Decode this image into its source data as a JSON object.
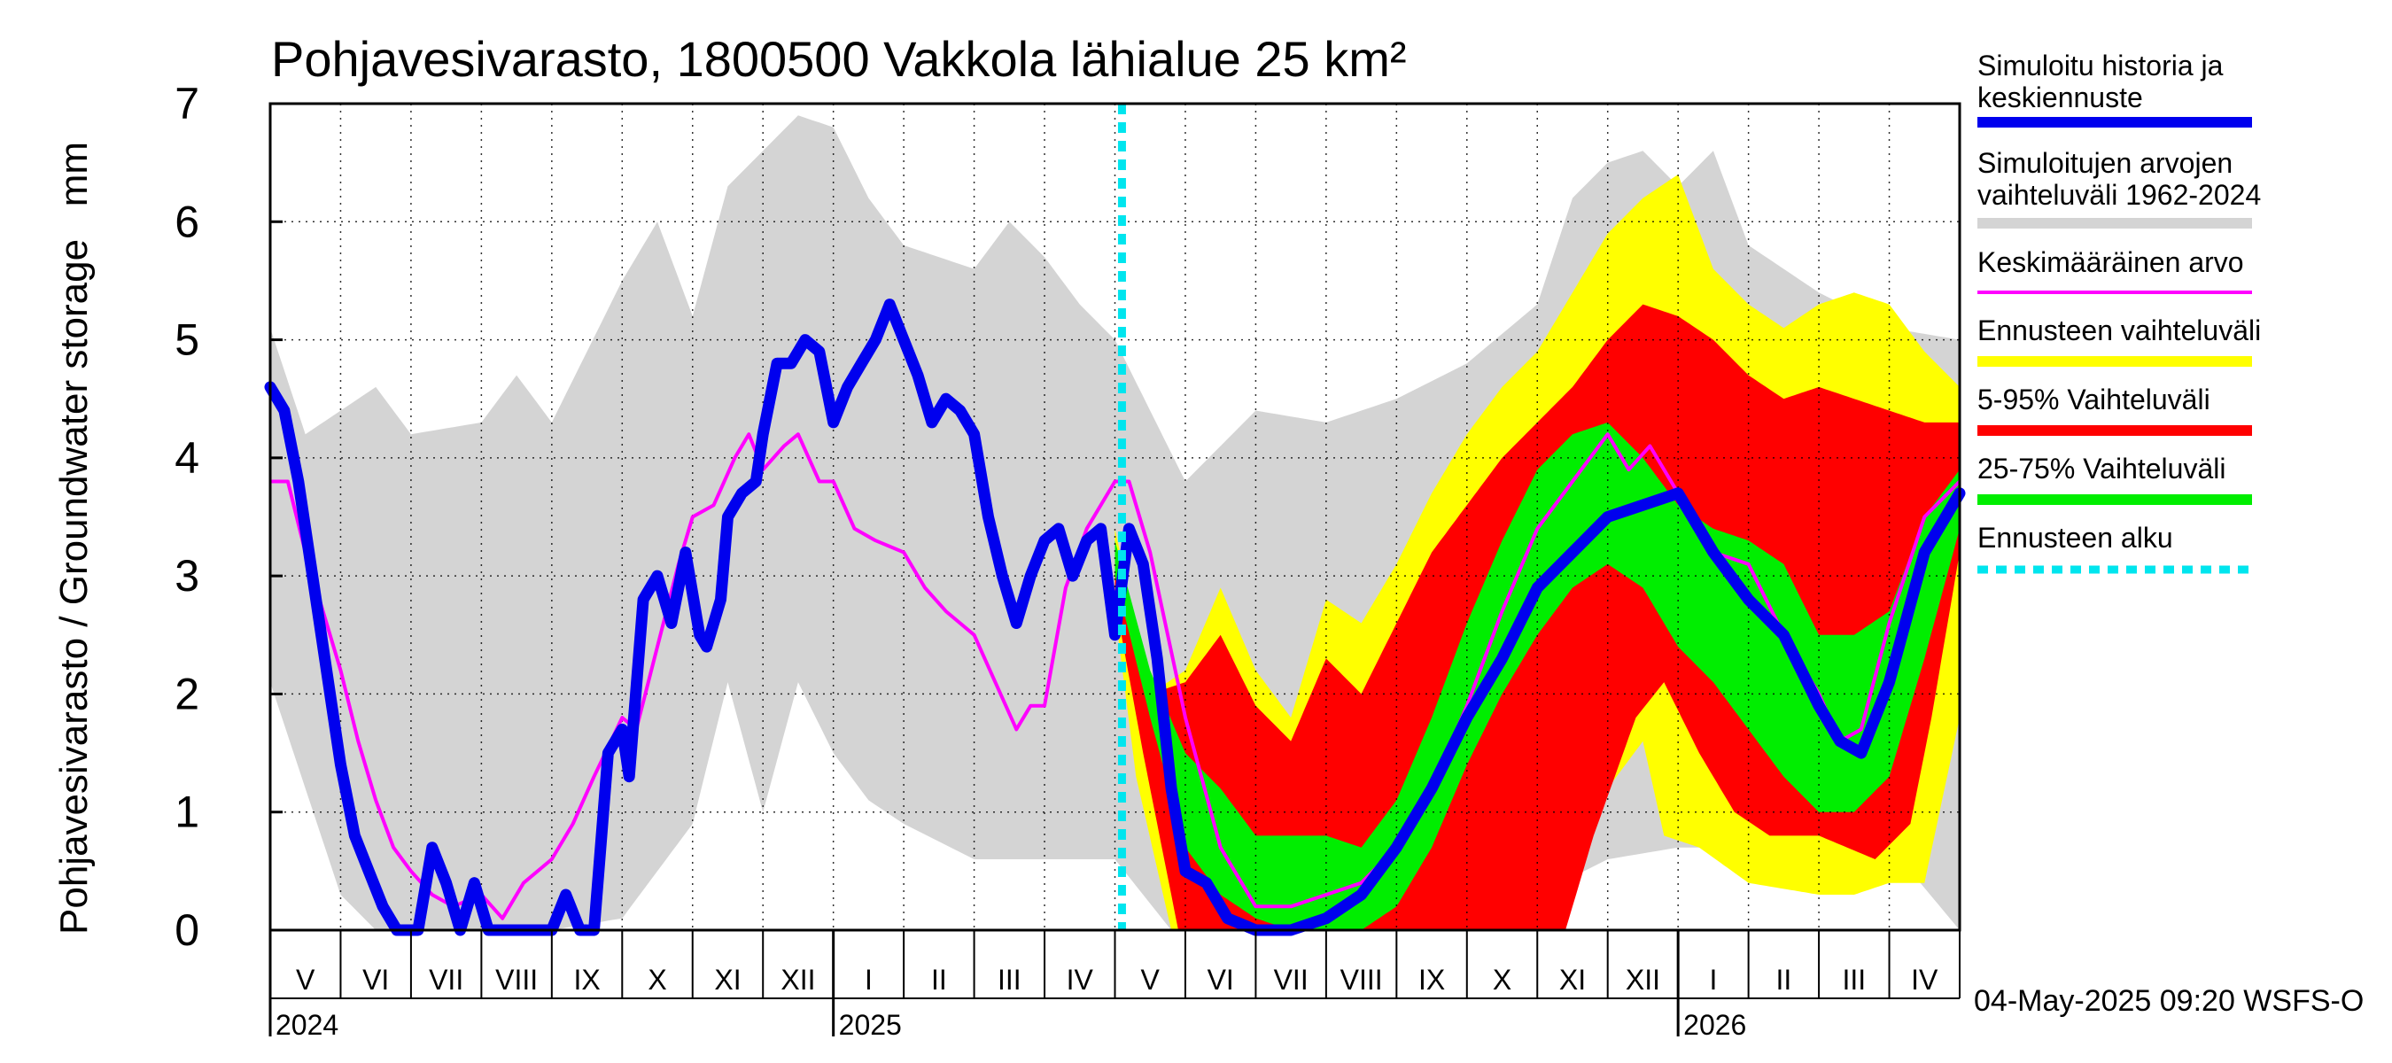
{
  "chart_data": {
    "type": "area",
    "title": "Pohjavesivarasto, 1800500 Vakkola lähialue 25 km²",
    "ylabel": "Pohjavesivarasto / Groundwater storage   mm",
    "ylim": [
      0,
      7
    ],
    "yticks": [
      "0",
      "1",
      "2",
      "3",
      "4",
      "5",
      "6",
      "7"
    ],
    "grid": true,
    "legend_position": "right",
    "months": [
      "V",
      "VI",
      "VII",
      "VIII",
      "IX",
      "X",
      "XI",
      "XII",
      "I",
      "II",
      "III",
      "IV",
      "V",
      "VI",
      "VII",
      "VIII",
      "IX",
      "X",
      "XI",
      "XII",
      "I",
      "II",
      "III",
      "IV"
    ],
    "years": [
      {
        "label": "2024",
        "month_index": 0
      },
      {
        "label": "2025",
        "month_index": 8
      },
      {
        "label": "2026",
        "month_index": 20
      }
    ],
    "forecast_start_month": 12.1,
    "footer": "04-May-2025 09:20 WSFS-O",
    "colors": {
      "history_range": "#d4d4d4",
      "forecast_range": "#ffff00",
      "p5_95": "#ff0000",
      "p25_75": "#00ee00",
      "mean": "#ff00ff",
      "simulated": "#0000ee",
      "forecast_start": "#00e5ee"
    },
    "legend": [
      {
        "label": "Simuloitu historia ja keskiennuste",
        "color": "#0000ee",
        "style": "thick"
      },
      {
        "label": "Simuloitujen arvojen vaihteluväli 1962-2024",
        "color": "#d4d4d4",
        "style": "thick"
      },
      {
        "label": "Keskimääräinen arvo",
        "color": "#ff00ff",
        "style": "thin"
      },
      {
        "label": "Ennusteen vaihteluväli",
        "color": "#ffff00",
        "style": "thick"
      },
      {
        "label": "5-95% Vaihteluväli",
        "color": "#ff0000",
        "style": "thick"
      },
      {
        "label": "25-75% Vaihteluväli",
        "color": "#00ee00",
        "style": "thick"
      },
      {
        "label": "Ennusteen alku",
        "color": "#00e5ee",
        "style": "dotted"
      }
    ],
    "series": {
      "history_max": [
        [
          0,
          5.1
        ],
        [
          0.5,
          4.2
        ],
        [
          1,
          4.4
        ],
        [
          1.5,
          4.6
        ],
        [
          2,
          4.2
        ],
        [
          3,
          4.3
        ],
        [
          3.5,
          4.7
        ],
        [
          4,
          4.3
        ],
        [
          5,
          5.5
        ],
        [
          5.5,
          6.0
        ],
        [
          6,
          5.2
        ],
        [
          6.5,
          6.3
        ],
        [
          7,
          6.6
        ],
        [
          7.5,
          6.9
        ],
        [
          8,
          6.8
        ],
        [
          8.5,
          6.2
        ],
        [
          9,
          5.8
        ],
        [
          10,
          5.6
        ],
        [
          10.5,
          6.0
        ],
        [
          11,
          5.7
        ],
        [
          11.5,
          5.3
        ],
        [
          12,
          5.0
        ],
        [
          13,
          3.8
        ],
        [
          14,
          4.4
        ],
        [
          15,
          4.3
        ],
        [
          16,
          4.5
        ],
        [
          17,
          4.8
        ],
        [
          18,
          5.3
        ],
        [
          18.5,
          6.2
        ],
        [
          19,
          6.5
        ],
        [
          19.5,
          6.6
        ],
        [
          20,
          6.3
        ],
        [
          20.5,
          6.6
        ],
        [
          21,
          5.8
        ],
        [
          22,
          5.4
        ],
        [
          23,
          5.1
        ],
        [
          24,
          5.0
        ]
      ],
      "history_min": [
        [
          0,
          2.1
        ],
        [
          0.5,
          1.2
        ],
        [
          1,
          0.3
        ],
        [
          1.5,
          0
        ],
        [
          4,
          0
        ],
        [
          5,
          0.1
        ],
        [
          6,
          0.9
        ],
        [
          6.5,
          2.1
        ],
        [
          7,
          1.0
        ],
        [
          7.5,
          2.1
        ],
        [
          8,
          1.5
        ],
        [
          8.5,
          1.1
        ],
        [
          9,
          0.9
        ],
        [
          10,
          0.6
        ],
        [
          11,
          0.6
        ],
        [
          12,
          0.6
        ],
        [
          12.8,
          0
        ],
        [
          17.5,
          0
        ],
        [
          18,
          0.3
        ],
        [
          19,
          0.6
        ],
        [
          20,
          0.7
        ],
        [
          21,
          0.7
        ],
        [
          22,
          0.6
        ],
        [
          23,
          0.4
        ],
        [
          23.3,
          0.5
        ],
        [
          24,
          0
        ]
      ],
      "forecast_max": [
        [
          12,
          3.4
        ],
        [
          12.5,
          2.0
        ],
        [
          13,
          2.2
        ],
        [
          13.5,
          2.9
        ],
        [
          14,
          2.2
        ],
        [
          14.5,
          1.8
        ],
        [
          15,
          2.8
        ],
        [
          15.5,
          2.6
        ],
        [
          16,
          3.1
        ],
        [
          16.5,
          3.7
        ],
        [
          17,
          4.2
        ],
        [
          17.5,
          4.6
        ],
        [
          18,
          4.9
        ],
        [
          18.5,
          5.4
        ],
        [
          19,
          5.9
        ],
        [
          19.5,
          6.2
        ],
        [
          20,
          6.4
        ],
        [
          20.5,
          5.6
        ],
        [
          21,
          5.3
        ],
        [
          21.5,
          5.1
        ],
        [
          22,
          5.3
        ],
        [
          22.5,
          5.4
        ],
        [
          23,
          5.3
        ],
        [
          23.5,
          4.9
        ],
        [
          24,
          4.6
        ]
      ],
      "forecast_min": [
        [
          12,
          2.7
        ],
        [
          12.3,
          1.3
        ],
        [
          12.8,
          0
        ],
        [
          18.2,
          0
        ],
        [
          18.6,
          0.5
        ],
        [
          19,
          1.2
        ],
        [
          19.5,
          1.6
        ],
        [
          19.8,
          0.8
        ],
        [
          20.3,
          0.7
        ],
        [
          21,
          0.4
        ],
        [
          22,
          0.3
        ],
        [
          22.5,
          0.3
        ],
        [
          23,
          0.4
        ],
        [
          23.5,
          0.4
        ],
        [
          24,
          1.8
        ]
      ],
      "p95": [
        [
          12,
          3.2
        ],
        [
          12.5,
          2.0
        ],
        [
          13,
          2.1
        ],
        [
          13.5,
          2.5
        ],
        [
          14,
          1.9
        ],
        [
          14.5,
          1.6
        ],
        [
          15,
          2.3
        ],
        [
          15.5,
          2.0
        ],
        [
          16,
          2.6
        ],
        [
          16.5,
          3.2
        ],
        [
          17,
          3.6
        ],
        [
          17.5,
          4.0
        ],
        [
          18,
          4.3
        ],
        [
          18.5,
          4.6
        ],
        [
          19,
          5.0
        ],
        [
          19.5,
          5.3
        ],
        [
          20,
          5.2
        ],
        [
          20.5,
          5.0
        ],
        [
          21,
          4.7
        ],
        [
          21.5,
          4.5
        ],
        [
          22,
          4.6
        ],
        [
          22.5,
          4.5
        ],
        [
          23,
          4.4
        ],
        [
          23.5,
          4.3
        ],
        [
          24,
          4.3
        ]
      ],
      "p5": [
        [
          12,
          2.8
        ],
        [
          12.4,
          1.5
        ],
        [
          12.9,
          0
        ],
        [
          18.4,
          0
        ],
        [
          18.8,
          0.8
        ],
        [
          19.4,
          1.8
        ],
        [
          19.8,
          2.1
        ],
        [
          20.3,
          1.5
        ],
        [
          20.8,
          1.0
        ],
        [
          21.3,
          0.8
        ],
        [
          22,
          0.8
        ],
        [
          22.8,
          0.6
        ],
        [
          23.3,
          0.9
        ],
        [
          23.6,
          1.8
        ],
        [
          24,
          3.2
        ]
      ],
      "p75": [
        [
          12,
          3.3
        ],
        [
          12.5,
          2.2
        ],
        [
          13,
          1.5
        ],
        [
          13.5,
          1.2
        ],
        [
          14,
          0.8
        ],
        [
          14.5,
          0.8
        ],
        [
          15,
          0.8
        ],
        [
          15.5,
          0.7
        ],
        [
          16,
          1.1
        ],
        [
          16.5,
          1.8
        ],
        [
          17,
          2.6
        ],
        [
          17.5,
          3.3
        ],
        [
          18,
          3.9
        ],
        [
          18.5,
          4.2
        ],
        [
          19,
          4.3
        ],
        [
          19.5,
          4.0
        ],
        [
          20,
          3.6
        ],
        [
          20.5,
          3.4
        ],
        [
          21,
          3.3
        ],
        [
          21.5,
          3.1
        ],
        [
          22,
          2.5
        ],
        [
          22.5,
          2.5
        ],
        [
          23,
          2.7
        ],
        [
          23.5,
          3.5
        ],
        [
          24,
          3.9
        ]
      ],
      "p25": [
        [
          12,
          3.0
        ],
        [
          12.5,
          1.8
        ],
        [
          13,
          0.7
        ],
        [
          13.5,
          0.3
        ],
        [
          14,
          0.1
        ],
        [
          14.5,
          0
        ],
        [
          15,
          0
        ],
        [
          15.5,
          0
        ],
        [
          16,
          0.2
        ],
        [
          16.5,
          0.7
        ],
        [
          17,
          1.4
        ],
        [
          17.5,
          2.0
        ],
        [
          18,
          2.5
        ],
        [
          18.5,
          2.9
        ],
        [
          19,
          3.1
        ],
        [
          19.5,
          2.9
        ],
        [
          20,
          2.4
        ],
        [
          20.5,
          2.1
        ],
        [
          21,
          1.7
        ],
        [
          21.5,
          1.3
        ],
        [
          22,
          1.0
        ],
        [
          22.5,
          1.0
        ],
        [
          23,
          1.3
        ],
        [
          23.5,
          2.3
        ],
        [
          24,
          3.4
        ]
      ],
      "mean": [
        [
          0,
          3.8
        ],
        [
          0.25,
          3.8
        ],
        [
          0.5,
          3.2
        ],
        [
          0.75,
          2.7
        ],
        [
          1,
          2.2
        ],
        [
          1.25,
          1.6
        ],
        [
          1.5,
          1.1
        ],
        [
          1.75,
          0.7
        ],
        [
          2,
          0.5
        ],
        [
          2.3,
          0.3
        ],
        [
          2.6,
          0.2
        ],
        [
          3,
          0.3
        ],
        [
          3.3,
          0.1
        ],
        [
          3.6,
          0.4
        ],
        [
          4,
          0.6
        ],
        [
          4.3,
          0.9
        ],
        [
          4.6,
          1.3
        ],
        [
          5,
          1.8
        ],
        [
          5.2,
          1.7
        ],
        [
          5.5,
          2.4
        ],
        [
          5.8,
          3.1
        ],
        [
          6,
          3.5
        ],
        [
          6.3,
          3.6
        ],
        [
          6.6,
          4.0
        ],
        [
          6.8,
          4.2
        ],
        [
          7,
          3.9
        ],
        [
          7.3,
          4.1
        ],
        [
          7.5,
          4.2
        ],
        [
          7.8,
          3.8
        ],
        [
          8,
          3.8
        ],
        [
          8.3,
          3.4
        ],
        [
          8.6,
          3.3
        ],
        [
          9,
          3.2
        ],
        [
          9.3,
          2.9
        ],
        [
          9.6,
          2.7
        ],
        [
          10,
          2.5
        ],
        [
          10.3,
          2.1
        ],
        [
          10.6,
          1.7
        ],
        [
          10.8,
          1.9
        ],
        [
          11,
          1.9
        ],
        [
          11.3,
          2.9
        ],
        [
          11.6,
          3.4
        ],
        [
          12,
          3.8
        ],
        [
          12.2,
          3.8
        ],
        [
          12.5,
          3.2
        ],
        [
          13,
          1.8
        ],
        [
          13.5,
          0.7
        ],
        [
          14,
          0.2
        ],
        [
          14.5,
          0.2
        ],
        [
          15,
          0.3
        ],
        [
          15.5,
          0.4
        ],
        [
          16,
          0.7
        ],
        [
          16.5,
          1.2
        ],
        [
          17,
          1.9
        ],
        [
          17.5,
          2.7
        ],
        [
          18,
          3.4
        ],
        [
          18.5,
          3.8
        ],
        [
          19,
          4.2
        ],
        [
          19.3,
          3.9
        ],
        [
          19.6,
          4.1
        ],
        [
          20,
          3.7
        ],
        [
          20.5,
          3.2
        ],
        [
          21,
          3.1
        ],
        [
          21.5,
          2.5
        ],
        [
          22,
          2.0
        ],
        [
          22.3,
          1.6
        ],
        [
          22.6,
          1.7
        ],
        [
          23,
          2.6
        ],
        [
          23.5,
          3.5
        ],
        [
          24,
          3.8
        ]
      ],
      "simulated": [
        [
          0,
          4.6
        ],
        [
          0.2,
          4.4
        ],
        [
          0.4,
          3.8
        ],
        [
          0.6,
          3.0
        ],
        [
          0.8,
          2.2
        ],
        [
          1,
          1.4
        ],
        [
          1.2,
          0.8
        ],
        [
          1.4,
          0.5
        ],
        [
          1.6,
          0.2
        ],
        [
          1.8,
          0
        ],
        [
          2.1,
          0
        ],
        [
          2.3,
          0.7
        ],
        [
          2.5,
          0.4
        ],
        [
          2.7,
          0
        ],
        [
          2.9,
          0.4
        ],
        [
          3.1,
          0
        ],
        [
          3.5,
          0
        ],
        [
          4,
          0
        ],
        [
          4.2,
          0.3
        ],
        [
          4.4,
          0
        ],
        [
          4.6,
          0
        ],
        [
          4.8,
          1.5
        ],
        [
          5,
          1.7
        ],
        [
          5.1,
          1.3
        ],
        [
          5.3,
          2.8
        ],
        [
          5.5,
          3.0
        ],
        [
          5.7,
          2.6
        ],
        [
          5.9,
          3.2
        ],
        [
          6.1,
          2.5
        ],
        [
          6.2,
          2.4
        ],
        [
          6.4,
          2.8
        ],
        [
          6.5,
          3.5
        ],
        [
          6.7,
          3.7
        ],
        [
          6.9,
          3.8
        ],
        [
          7,
          4.2
        ],
        [
          7.2,
          4.8
        ],
        [
          7.4,
          4.8
        ],
        [
          7.6,
          5.0
        ],
        [
          7.8,
          4.9
        ],
        [
          8,
          4.3
        ],
        [
          8.2,
          4.6
        ],
        [
          8.4,
          4.8
        ],
        [
          8.6,
          5.0
        ],
        [
          8.8,
          5.3
        ],
        [
          9,
          5.0
        ],
        [
          9.2,
          4.7
        ],
        [
          9.4,
          4.3
        ],
        [
          9.6,
          4.5
        ],
        [
          9.8,
          4.4
        ],
        [
          10,
          4.2
        ],
        [
          10.2,
          3.5
        ],
        [
          10.4,
          3.0
        ],
        [
          10.6,
          2.6
        ],
        [
          10.8,
          3.0
        ],
        [
          11,
          3.3
        ],
        [
          11.2,
          3.4
        ],
        [
          11.4,
          3.0
        ],
        [
          11.6,
          3.3
        ],
        [
          11.8,
          3.4
        ],
        [
          12,
          2.5
        ],
        [
          12.2,
          3.4
        ],
        [
          12.4,
          3.1
        ],
        [
          12.6,
          2.3
        ],
        [
          12.8,
          1.2
        ],
        [
          13,
          0.5
        ],
        [
          13.3,
          0.4
        ],
        [
          13.6,
          0.1
        ],
        [
          14,
          0
        ],
        [
          14.5,
          0
        ],
        [
          15,
          0.1
        ],
        [
          15.5,
          0.3
        ],
        [
          16,
          0.7
        ],
        [
          16.5,
          1.2
        ],
        [
          17,
          1.8
        ],
        [
          17.5,
          2.3
        ],
        [
          18,
          2.9
        ],
        [
          18.5,
          3.2
        ],
        [
          19,
          3.5
        ],
        [
          19.5,
          3.6
        ],
        [
          20,
          3.7
        ],
        [
          20.5,
          3.2
        ],
        [
          21,
          2.8
        ],
        [
          21.5,
          2.5
        ],
        [
          22,
          1.9
        ],
        [
          22.3,
          1.6
        ],
        [
          22.6,
          1.5
        ],
        [
          23,
          2.1
        ],
        [
          23.5,
          3.2
        ],
        [
          24,
          3.7
        ]
      ]
    }
  }
}
